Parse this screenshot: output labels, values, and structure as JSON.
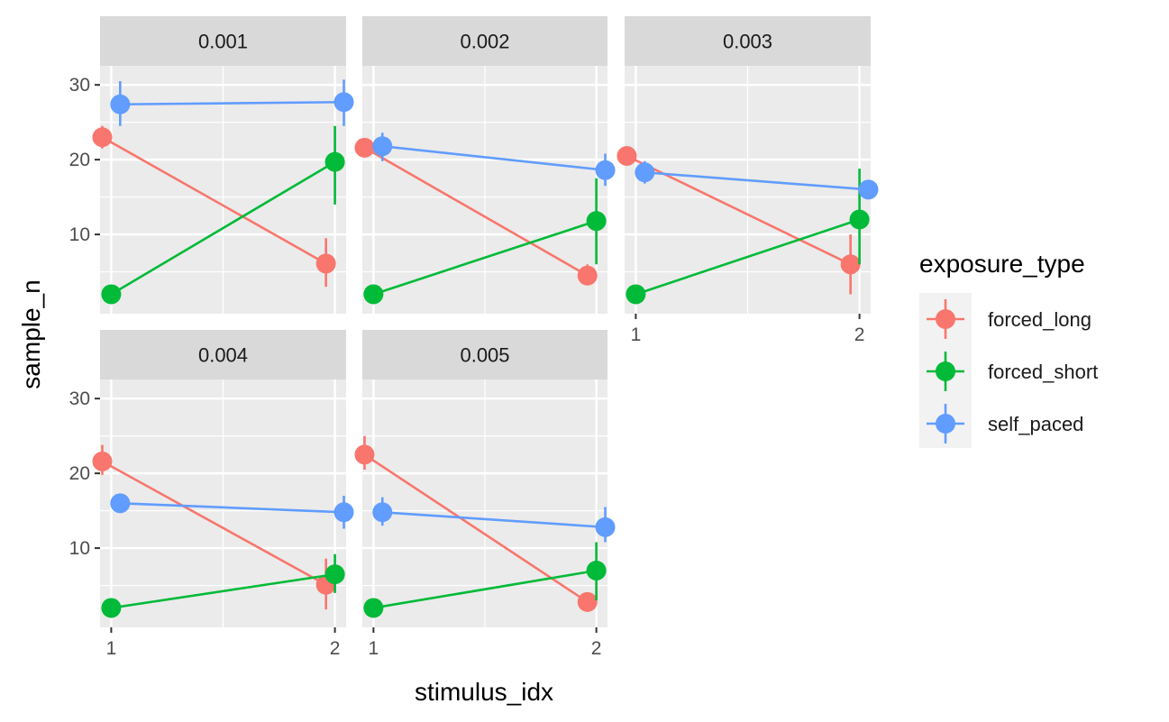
{
  "chart_data": {
    "type": "line",
    "facet_by": "",
    "xlabel": "stimulus_idx",
    "ylabel": "sample_n",
    "x_ticks": [
      "1",
      "2"
    ],
    "y_ticks": [
      10,
      20,
      30
    ],
    "xlim": [
      0.95,
      2.05
    ],
    "ylim": [
      0,
      30
    ],
    "legend": {
      "title": "exposure_type",
      "position": "right",
      "entries": [
        "forced_long",
        "forced_short",
        "self_paced"
      ]
    },
    "colors": {
      "forced_long": "#F8766D",
      "forced_short": "#00BA38",
      "self_paced": "#619CFF",
      "panel_bg": "#EBEBEB",
      "strip_bg": "#D9D9D9",
      "grid": "#FFFFFF"
    },
    "grid": true,
    "panels": [
      {
        "label": "0.001",
        "series": [
          {
            "name": "forced_long",
            "x": [
              0.96,
              1.96
            ],
            "y": [
              23.0,
              6.1
            ],
            "err_low": [
              21.5,
              3.0
            ],
            "err_high": [
              24.5,
              9.5
            ]
          },
          {
            "name": "forced_short",
            "x": [
              1.0,
              2.0
            ],
            "y": [
              2.0,
              19.7
            ],
            "err_low": [
              2.0,
              14.0
            ],
            "err_high": [
              2.0,
              24.5
            ]
          },
          {
            "name": "self_paced",
            "x": [
              1.04,
              2.04
            ],
            "y": [
              27.4,
              27.7
            ],
            "err_low": [
              24.5,
              24.5
            ],
            "err_high": [
              30.5,
              30.7
            ]
          }
        ]
      },
      {
        "label": "0.002",
        "series": [
          {
            "name": "forced_long",
            "x": [
              0.96,
              1.96
            ],
            "y": [
              21.6,
              4.5
            ],
            "err_low": [
              21.0,
              3.5
            ],
            "err_high": [
              22.5,
              6.0
            ]
          },
          {
            "name": "forced_short",
            "x": [
              1.0,
              2.0
            ],
            "y": [
              2.0,
              11.8
            ],
            "err_low": [
              2.0,
              6.0
            ],
            "err_high": [
              2.0,
              17.5
            ]
          },
          {
            "name": "self_paced",
            "x": [
              1.04,
              2.04
            ],
            "y": [
              21.8,
              18.6
            ],
            "err_low": [
              19.8,
              16.5
            ],
            "err_high": [
              23.6,
              20.8
            ]
          }
        ]
      },
      {
        "label": "0.003",
        "series": [
          {
            "name": "forced_long",
            "x": [
              0.96,
              1.96
            ],
            "y": [
              20.5,
              6.0
            ],
            "err_low": [
              20.0,
              2.0
            ],
            "err_high": [
              21.0,
              10.0
            ]
          },
          {
            "name": "forced_short",
            "x": [
              1.0,
              2.0
            ],
            "y": [
              2.0,
              12.0
            ],
            "err_low": [
              2.0,
              6.0
            ],
            "err_high": [
              2.0,
              18.8
            ]
          },
          {
            "name": "self_paced",
            "x": [
              1.04,
              2.04
            ],
            "y": [
              18.3,
              16.0
            ],
            "err_low": [
              16.8,
              14.8
            ],
            "err_high": [
              19.8,
              17.0
            ]
          }
        ]
      },
      {
        "label": "0.004",
        "series": [
          {
            "name": "forced_long",
            "x": [
              0.96,
              1.96
            ],
            "y": [
              21.6,
              5.1
            ],
            "err_low": [
              19.8,
              1.8
            ],
            "err_high": [
              23.8,
              8.6
            ]
          },
          {
            "name": "forced_short",
            "x": [
              1.0,
              2.0
            ],
            "y": [
              2.0,
              6.5
            ],
            "err_low": [
              2.0,
              4.0
            ],
            "err_high": [
              2.0,
              9.2
            ]
          },
          {
            "name": "self_paced",
            "x": [
              1.04,
              2.04
            ],
            "y": [
              16.0,
              14.8
            ],
            "err_low": [
              15.0,
              12.6
            ],
            "err_high": [
              17.0,
              17.0
            ]
          }
        ]
      },
      {
        "label": "0.005",
        "series": [
          {
            "name": "forced_long",
            "x": [
              0.96,
              1.96
            ],
            "y": [
              22.5,
              2.8
            ],
            "err_low": [
              20.5,
              2.0
            ],
            "err_high": [
              25.0,
              3.8
            ]
          },
          {
            "name": "forced_short",
            "x": [
              1.0,
              2.0
            ],
            "y": [
              2.0,
              7.0
            ],
            "err_low": [
              2.0,
              3.0
            ],
            "err_high": [
              2.0,
              10.8
            ]
          },
          {
            "name": "self_paced",
            "x": [
              1.04,
              2.04
            ],
            "y": [
              14.8,
              12.8
            ],
            "err_low": [
              13.0,
              10.8
            ],
            "err_high": [
              16.8,
              15.5
            ]
          }
        ]
      }
    ]
  }
}
